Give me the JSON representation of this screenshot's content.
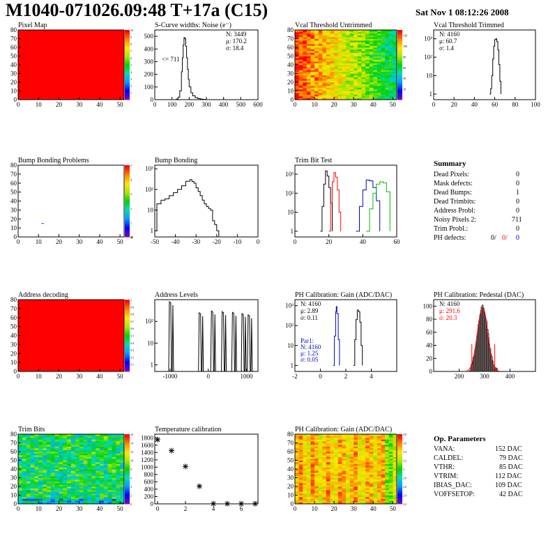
{
  "header": {
    "title": "M1040-071026.09:48 T+17a (C15)",
    "date": "Sat Nov  1 08:12:26 2008"
  },
  "colors": {
    "red": "#ff0000",
    "blue": "#0000cc",
    "green": "#00bb00",
    "black": "#000000"
  },
  "chart_data": [
    {
      "id": "pixel-map",
      "type": "heatmap",
      "title": "Pixel Map",
      "xlim": [
        0,
        52
      ],
      "ylim": [
        0,
        80
      ],
      "xticks": [
        0,
        10,
        20,
        30,
        40,
        50
      ],
      "yticks": [
        0,
        10,
        20,
        30,
        40,
        50,
        60,
        70,
        80
      ],
      "fill": "uniform",
      "value": 10,
      "zlim": [
        0,
        10
      ],
      "zticks": [
        1,
        2,
        3,
        4,
        5,
        6,
        7,
        8,
        9,
        10
      ]
    },
    {
      "id": "s-curve-noise",
      "type": "line",
      "title": "S-Curve widths: Noise (e⁻)",
      "xlim": [
        0,
        600
      ],
      "ylim": [
        0,
        550
      ],
      "xticks": [
        0,
        100,
        200,
        300,
        400,
        500,
        600
      ],
      "yticks": [
        0,
        100,
        200,
        300,
        400,
        500
      ],
      "x": [
        115,
        125,
        135,
        145,
        155,
        160,
        165,
        170,
        175,
        180,
        185,
        190,
        195,
        200,
        210,
        220,
        235,
        250,
        265,
        280,
        300
      ],
      "y": [
        0,
        5,
        20,
        70,
        220,
        330,
        430,
        490,
        480,
        420,
        330,
        240,
        160,
        100,
        55,
        30,
        15,
        8,
        4,
        2,
        0
      ],
      "annotation": "<= 711",
      "stats": [
        {
          "label": "N: 3449"
        },
        {
          "label": "μ: 170.2"
        },
        {
          "label": "σ: 18.4"
        }
      ]
    },
    {
      "id": "vcal-untrimmed",
      "type": "heatmap",
      "title": "Vcal Threshold Untrimmed",
      "xlim": [
        0,
        52
      ],
      "ylim": [
        0,
        80
      ],
      "xticks": [
        0,
        10,
        20,
        30,
        40,
        50
      ],
      "yticks": [
        0,
        10,
        20,
        30,
        40,
        50,
        60,
        70,
        80
      ],
      "fill": "gradient-x",
      "zlim": [
        0,
        130
      ],
      "zticks": [
        20,
        40,
        60,
        80,
        100,
        120
      ]
    },
    {
      "id": "vcal-trimmed",
      "type": "line",
      "title": "Vcal Threshold Trimmed",
      "log_y": true,
      "xlim": [
        0,
        100
      ],
      "ylim": [
        0.5,
        3000
      ],
      "xticks": [
        0,
        20,
        40,
        60,
        80,
        100
      ],
      "yticks": [
        1,
        10,
        100,
        1000
      ],
      "yticklabels": [
        "1",
        "10",
        "10²",
        "10³"
      ],
      "x": [
        55,
        56,
        57,
        58,
        59,
        60,
        61,
        62,
        63,
        64,
        65,
        66
      ],
      "y": [
        1,
        2,
        10,
        80,
        400,
        900,
        1000,
        700,
        250,
        40,
        5,
        1
      ],
      "stats": [
        {
          "label": "N: 4160"
        },
        {
          "label": "μ: 60.7"
        },
        {
          "label": "σ:  1.4"
        }
      ]
    },
    {
      "id": "bump-bonding-problems",
      "type": "heatmap",
      "title": "Bump Bonding Problems",
      "xlim": [
        0,
        52
      ],
      "ylim": [
        0,
        80
      ],
      "xticks": [
        0,
        10,
        20,
        30,
        40,
        50
      ],
      "yticks": [
        0,
        10,
        20,
        30,
        40,
        50,
        60,
        70,
        80
      ],
      "fill": "empty",
      "marks": [
        {
          "x": 12,
          "y": 15
        }
      ],
      "zlim": [
        0,
        5
      ],
      "zticks": [
        -4,
        -3,
        -2,
        -1,
        0,
        1,
        2,
        3,
        4,
        5
      ]
    },
    {
      "id": "bump-bonding",
      "type": "line",
      "title": "Bump Bonding",
      "log_y": true,
      "xlim": [
        -50,
        0
      ],
      "ylim": [
        0.5,
        1500
      ],
      "xticks": [
        -50,
        -40,
        -30,
        -20,
        -10,
        0
      ],
      "yticks": [
        1,
        10,
        100,
        1000
      ],
      "yticklabels": [
        "1",
        "10",
        "10²",
        "10³"
      ],
      "x": [
        -50,
        -49,
        -47,
        -45,
        -43,
        -41,
        -39,
        -37,
        -35,
        -33,
        -32,
        -31,
        -30,
        -29,
        -28,
        -27,
        -26,
        -25,
        -24,
        -23,
        -22,
        -21,
        -20,
        -19
      ],
      "y": [
        1,
        20,
        30,
        35,
        50,
        70,
        100,
        150,
        250,
        300,
        240,
        200,
        120,
        80,
        50,
        30,
        20,
        15,
        12,
        10,
        3,
        2,
        1,
        0.5
      ]
    },
    {
      "id": "trim-bit-test",
      "type": "line",
      "title": "Trim Bit Test",
      "log_y": true,
      "xlim": [
        0,
        60
      ],
      "ylim": [
        0.5,
        3000
      ],
      "xticks": [
        0,
        20,
        40,
        60
      ],
      "yticks": [
        1,
        10,
        100,
        1000
      ],
      "yticklabels": [
        "1",
        "10",
        "10²",
        "10³"
      ],
      "series": [
        {
          "x": [
            15,
            16,
            17,
            18,
            19,
            20,
            21,
            22
          ],
          "y": [
            1,
            20,
            300,
            1500,
            800,
            200,
            30,
            1
          ],
          "color": "#000000"
        },
        {
          "x": [
            20,
            21,
            22,
            23,
            24,
            25,
            26,
            27
          ],
          "y": [
            1,
            30,
            400,
            1200,
            700,
            150,
            10,
            1
          ],
          "color": "#ff0000"
        },
        {
          "x": [
            36,
            38,
            40,
            42,
            44,
            46,
            48,
            50
          ],
          "y": [
            1,
            20,
            150,
            500,
            450,
            200,
            40,
            1
          ],
          "color": "#0000cc"
        },
        {
          "x": [
            42,
            44,
            46,
            48,
            50,
            52,
            54,
            56
          ],
          "y": [
            1,
            15,
            100,
            300,
            400,
            350,
            120,
            1
          ],
          "color": "#00bb00"
        }
      ]
    },
    {
      "id": "address-decoding",
      "type": "heatmap",
      "title": "Address decoding",
      "xlim": [
        0,
        52
      ],
      "ylim": [
        0,
        80
      ],
      "xticks": [
        0,
        10,
        20,
        30,
        40,
        50
      ],
      "yticks": [
        0,
        10,
        20,
        30,
        40,
        50,
        60,
        70,
        80
      ],
      "fill": "uniform",
      "value": 1,
      "zlim": [
        0,
        1
      ],
      "zticks": [
        0.1,
        0.2,
        0.3,
        0.4,
        0.5,
        0.6,
        0.7,
        0.8,
        0.9,
        1
      ]
    },
    {
      "id": "address-levels",
      "type": "line",
      "title": "Address Levels",
      "log_y": true,
      "xlim": [
        -1400,
        1300
      ],
      "ylim": [
        0.5,
        1000
      ],
      "xticks": [
        -1000,
        0,
        1000
      ],
      "yticks": [
        1,
        10,
        100
      ],
      "yticklabels": [
        "1",
        "10",
        "10²"
      ],
      "peaks": [
        {
          "x": -1000,
          "y": 800
        },
        {
          "x": -220,
          "y": 250
        },
        {
          "x": 100,
          "y": 300
        },
        {
          "x": 380,
          "y": 280
        },
        {
          "x": 650,
          "y": 260
        },
        {
          "x": 900,
          "y": 230
        },
        {
          "x": 1060,
          "y": 200
        }
      ]
    },
    {
      "id": "ph-gain",
      "type": "line",
      "title": "PH Calibration: Gain (ADC/DAC)",
      "log_y": true,
      "xlim": [
        -2,
        6
      ],
      "ylim": [
        0.5,
        2000
      ],
      "xticks": [
        -2,
        0,
        2,
        4
      ],
      "yticks": [
        1,
        10,
        100,
        1000
      ],
      "yticklabels": [
        "1",
        "10",
        "10²",
        "10³"
      ],
      "series": [
        {
          "x": [
            1.0,
            1.1,
            1.2,
            1.25,
            1.3,
            1.4,
            1.5
          ],
          "y": [
            1,
            30,
            500,
            900,
            400,
            20,
            1
          ],
          "color": "#0000cc"
        },
        {
          "x": [
            2.6,
            2.7,
            2.8,
            2.9,
            3.0,
            3.1,
            3.2,
            3.3
          ],
          "y": [
            1,
            20,
            200,
            600,
            500,
            150,
            10,
            1
          ],
          "color": "#000000"
        }
      ],
      "stats": [
        {
          "label": "N: 4160"
        },
        {
          "label": "μ: 2.89"
        },
        {
          "label": "σ: 0.11"
        }
      ],
      "stats2": [
        {
          "label": "Par1:"
        },
        {
          "label": "N: 4160"
        },
        {
          "label": "μ: 1.25"
        },
        {
          "label": "σ: 0.05"
        }
      ]
    },
    {
      "id": "ph-pedestal",
      "type": "bar",
      "title": "PH Calibration: Pedestal (DAC)",
      "xlim": [
        100,
        500
      ],
      "ylim": [
        0,
        110
      ],
      "xticks": [
        200,
        300,
        400
      ],
      "yticks": [
        0,
        20,
        40,
        60,
        80,
        100
      ],
      "mean": 291.6,
      "sigma": 20.3,
      "fit_lines": [
        250,
        340
      ],
      "stats": [
        {
          "label": "N: 4160"
        },
        {
          "label": "μ: 291.6"
        },
        {
          "label": "σ: 20.3"
        }
      ]
    },
    {
      "id": "trim-bits",
      "type": "heatmap",
      "title": "Trim Bits",
      "xlim": [
        0,
        52
      ],
      "ylim": [
        0,
        80
      ],
      "xticks": [
        0,
        10,
        20,
        30,
        40,
        50
      ],
      "yticks": [
        0,
        10,
        20,
        30,
        40,
        50,
        60,
        70,
        80
      ],
      "fill": "noise-mid",
      "zlim": [
        0,
        16
      ],
      "zticks": [
        0,
        2,
        4,
        6,
        8,
        10,
        12,
        14,
        16
      ]
    },
    {
      "id": "temperature-calibration",
      "type": "scatter",
      "title": "Temperature calibration",
      "xlim": [
        -0.2,
        7.2
      ],
      "ylim": [
        0,
        1900
      ],
      "xticks": [
        0,
        2,
        4,
        6
      ],
      "yticks": [
        0,
        200,
        400,
        600,
        800,
        1000,
        1200,
        1400,
        1600,
        1800
      ],
      "x": [
        0,
        1,
        2,
        3,
        4,
        5,
        6,
        7
      ],
      "y": [
        1750,
        1450,
        1020,
        480,
        5,
        5,
        5,
        5
      ]
    },
    {
      "id": "ph-gain-map",
      "type": "heatmap",
      "title": "PH Calibration: Gain (ADC/DAC)",
      "xlim": [
        0,
        52
      ],
      "ylim": [
        0,
        80
      ],
      "xticks": [
        0,
        10,
        20,
        30,
        40,
        50
      ],
      "yticks": [
        0,
        10,
        20,
        30,
        40,
        50,
        60,
        70,
        80
      ],
      "fill": "noise-hot",
      "zlim": [
        2.2,
        3.8
      ],
      "zticks": [
        2.2,
        2.4,
        2.6,
        2.8,
        3,
        3.2,
        3.4,
        3.6,
        3.8
      ]
    }
  ],
  "summary": {
    "title": "Summary",
    "rows": [
      {
        "label": "Dead Pixels:",
        "value": "0"
      },
      {
        "label": "Mask defects:",
        "value": "0"
      },
      {
        "label": "Dead Bumps:",
        "value": "1"
      },
      {
        "label": "Dead Trimbits:",
        "value": "0"
      },
      {
        "label": "Address Probl:",
        "value": "0"
      },
      {
        "label": "Noisy Pixels 2:",
        "value": "711"
      },
      {
        "label": "Trim Probl.:",
        "value": "0"
      }
    ],
    "ph_defects": {
      "label": "PH defects:",
      "v1": "0/",
      "v2": "0/",
      "v3": "0"
    }
  },
  "op_params": {
    "title": "Op. Parameters",
    "rows": [
      {
        "label": "VANA:",
        "value": "152 DAC"
      },
      {
        "label": "CALDEL:",
        "value": "79 DAC"
      },
      {
        "label": "VTHR:",
        "value": "85 DAC"
      },
      {
        "label": "VTRIM:",
        "value": "112 DAC"
      },
      {
        "label": "IBIAS_DAC:",
        "value": "109 DAC"
      },
      {
        "label": "VOFFSETOP:",
        "value": "42 DAC"
      }
    ]
  }
}
